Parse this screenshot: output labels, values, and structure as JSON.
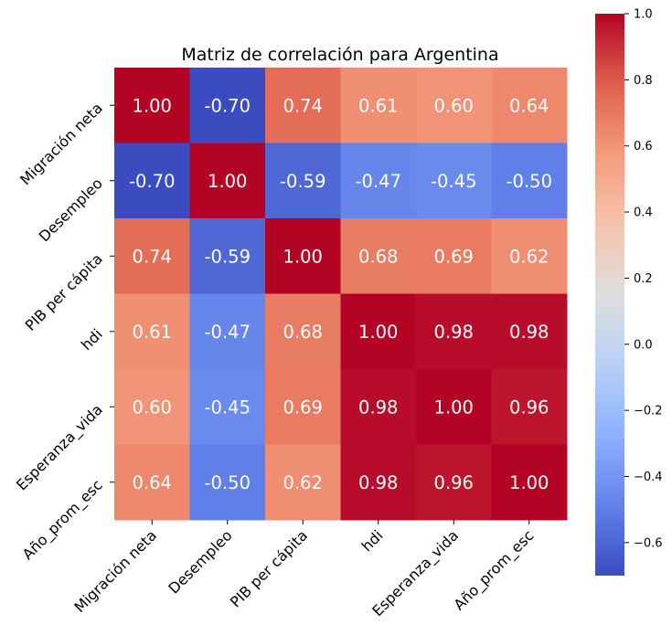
{
  "chart_data": {
    "type": "heatmap",
    "title": "Matriz de correlación para Argentina",
    "labels": [
      "Migración neta",
      "Desempleo",
      "PIB per cápita",
      "hdi",
      "Esperanza_vida",
      "Año_prom_esc"
    ],
    "matrix": [
      [
        1.0,
        -0.7,
        0.74,
        0.61,
        0.6,
        0.64
      ],
      [
        -0.7,
        1.0,
        -0.59,
        -0.47,
        -0.45,
        -0.5
      ],
      [
        0.74,
        -0.59,
        1.0,
        0.68,
        0.69,
        0.62
      ],
      [
        0.61,
        -0.47,
        0.68,
        1.0,
        0.98,
        0.98
      ],
      [
        0.6,
        -0.45,
        0.69,
        0.98,
        1.0,
        0.96
      ],
      [
        0.64,
        -0.5,
        0.62,
        0.98,
        0.96,
        1.0
      ]
    ],
    "value_format": "0.00",
    "colormap": "coolwarm",
    "vmin": -0.7,
    "vmax": 1.0,
    "colorbar": {
      "ticks": [
        -0.6,
        -0.4,
        -0.2,
        0.0,
        0.2,
        0.4,
        0.6,
        0.8,
        1.0
      ],
      "tick_labels": [
        "−0.6",
        "−0.4",
        "−0.2",
        "0.0",
        "0.2",
        "0.4",
        "0.6",
        "0.8",
        "1.0"
      ],
      "position": "right"
    },
    "grid": false
  }
}
